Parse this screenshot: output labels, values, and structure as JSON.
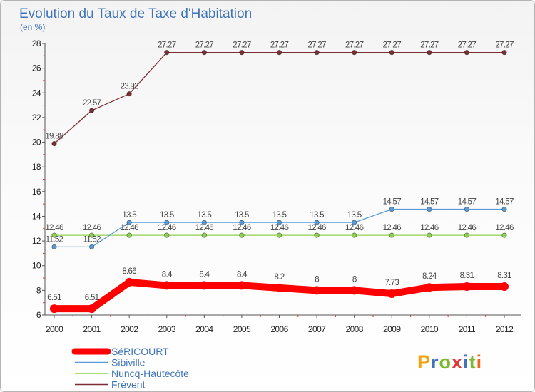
{
  "chart_data": {
    "type": "line",
    "title": "Evolution du Taux de Taxe d'Habitation",
    "subtitle": "(en %)",
    "xlabel": "",
    "ylabel": "(en %)",
    "ylim": [
      6,
      28
    ],
    "yticks": [
      6,
      8,
      10,
      12,
      14,
      16,
      18,
      20,
      22,
      24,
      26,
      28
    ],
    "categories": [
      "2000",
      "2001",
      "2002",
      "2003",
      "2004",
      "2005",
      "2006",
      "2007",
      "2008",
      "2009",
      "2010",
      "2011",
      "2012"
    ],
    "grid": false,
    "legend_position": "bottom-left",
    "series": [
      {
        "name": "SéRICOURT",
        "color": "#ff0000",
        "line_width": "thick",
        "values": [
          6.51,
          6.51,
          8.66,
          8.4,
          8.4,
          8.4,
          8.2,
          8,
          8,
          7.73,
          8.24,
          8.31,
          8.31
        ],
        "labels": [
          "6.51",
          "6.51",
          "8.66",
          "8.4",
          "8.4",
          "8.4",
          "8.2",
          "8",
          "8",
          "7.73",
          "8.24",
          "8.31",
          "8.31"
        ]
      },
      {
        "name": "Sibiville",
        "color": "#5a9bd5",
        "line_width": "thin",
        "values": [
          11.52,
          11.52,
          13.5,
          13.5,
          13.5,
          13.5,
          13.5,
          13.5,
          13.5,
          14.57,
          14.57,
          14.57,
          14.57
        ],
        "labels": [
          "11.52",
          "11.52",
          "13.5",
          "13.5",
          "13.5",
          "13.5",
          "13.5",
          "13.5",
          "13.5",
          "14.57",
          "14.57",
          "14.57",
          "14.57"
        ]
      },
      {
        "name": "Nuncq-Hautecôte",
        "color": "#8fd14f",
        "line_width": "thin",
        "values": [
          12.46,
          12.46,
          12.46,
          12.46,
          12.46,
          12.46,
          12.46,
          12.46,
          12.46,
          12.46,
          12.46,
          12.46,
          12.46
        ],
        "labels": [
          "12.46",
          "12.46",
          "12.46",
          "12.46",
          "12.46",
          "12.46",
          "12.46",
          "12.46",
          "12.46",
          "12.46",
          "12.46",
          "12.46",
          "12.46"
        ]
      },
      {
        "name": "Frévent",
        "color": "#7b2f35",
        "line_width": "thin",
        "values": [
          19.88,
          22.57,
          23.92,
          27.27,
          27.27,
          27.27,
          27.27,
          27.27,
          27.27,
          27.27,
          27.27,
          27.27,
          27.27
        ],
        "labels": [
          "19.88",
          "22.57",
          "23.92",
          "27.27",
          "27.27",
          "27.27",
          "27.27",
          "27.27",
          "27.27",
          "27.27",
          "27.27",
          "27.27",
          "27.27"
        ]
      }
    ]
  },
  "brand": {
    "text": "Proxiti"
  }
}
